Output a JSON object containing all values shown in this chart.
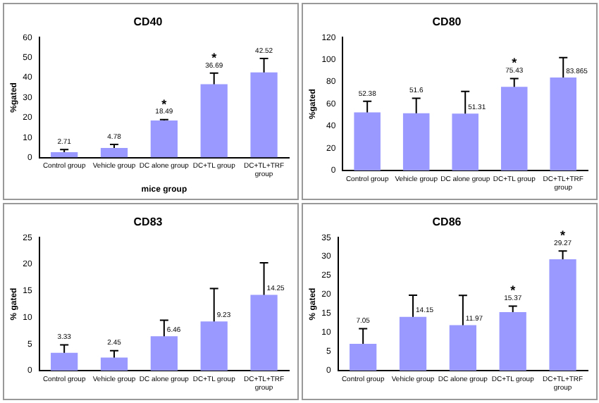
{
  "chart_data": [
    {
      "type": "bar",
      "title": "CD40",
      "xlabel": "mice group",
      "ylabel": "%gated",
      "categories": [
        "Control group",
        "Vehicle group",
        "DC alone group",
        "DC+TL group",
        "DC+TL+TRF group"
      ],
      "values": [
        2.71,
        4.78,
        18.49,
        36.69,
        42.52
      ],
      "errors": [
        1.3,
        1.8,
        0.5,
        5.5,
        7
      ],
      "color": "#9999ff",
      "ylim": [
        0,
        60
      ],
      "yticks": [
        0,
        10,
        20,
        30,
        40,
        50,
        60
      ],
      "data_labels": true,
      "grid": false,
      "legend": false,
      "annotations": [
        {
          "text": "*",
          "x": "DC alone group",
          "y": 18.49
        },
        {
          "text": "*",
          "x": "DC+TL group",
          "y": 36.69
        }
      ]
    },
    {
      "type": "bar",
      "title": "CD80",
      "ylabel": "%gated",
      "categories": [
        "Control group",
        "Vehicle group",
        "DC alone group",
        "DC+TL group",
        "DC+TL+TRF group"
      ],
      "values": [
        52.38,
        51.6,
        51.31,
        75.43,
        83.865
      ],
      "errors": [
        10,
        13.5,
        20,
        7.5,
        18
      ],
      "color": "#9999ff",
      "ylim": [
        0,
        120
      ],
      "yticks": [
        0,
        20,
        40,
        60,
        80,
        100,
        120
      ],
      "data_labels": true,
      "grid": false,
      "legend": false,
      "annotations": [
        {
          "text": "*",
          "x": "DC+TL group",
          "y": 75.43
        }
      ]
    },
    {
      "type": "bar",
      "title": "CD83",
      "ylabel": "% gated",
      "categories": [
        "Control group",
        "Vehicle group",
        "DC alone group",
        "DC+TL group",
        "DC+TL+TRF group"
      ],
      "values": [
        3.33,
        2.45,
        6.46,
        9.23,
        14.25
      ],
      "errors": [
        1.5,
        1.3,
        3,
        6.2,
        6
      ],
      "color": "#9999ff",
      "ylim": [
        0,
        25
      ],
      "yticks": [
        0,
        5,
        10,
        15,
        20,
        25
      ],
      "data_labels": true,
      "grid": false,
      "legend": false
    },
    {
      "type": "bar",
      "title": "CD86",
      "ylabel": "% gated",
      "categories": [
        "Control group",
        "Vehicle group",
        "DC alone group",
        "DC+TL group",
        "DC+TL+TRF group"
      ],
      "values": [
        7.05,
        14.15,
        11.97,
        15.37,
        29.27
      ],
      "errors": [
        4,
        5.7,
        7.8,
        1.6,
        2.2
      ],
      "color": "#9999ff",
      "ylim": [
        0,
        35
      ],
      "yticks": [
        0,
        5,
        10,
        15,
        20,
        25,
        30,
        35
      ],
      "data_labels": true,
      "grid": false,
      "legend": false,
      "annotations": [
        {
          "text": "*",
          "x": "DC+TL group",
          "y": 15.37
        },
        {
          "text": "*",
          "x": "DC+TL+TRF group",
          "y": 29.27
        }
      ]
    }
  ]
}
